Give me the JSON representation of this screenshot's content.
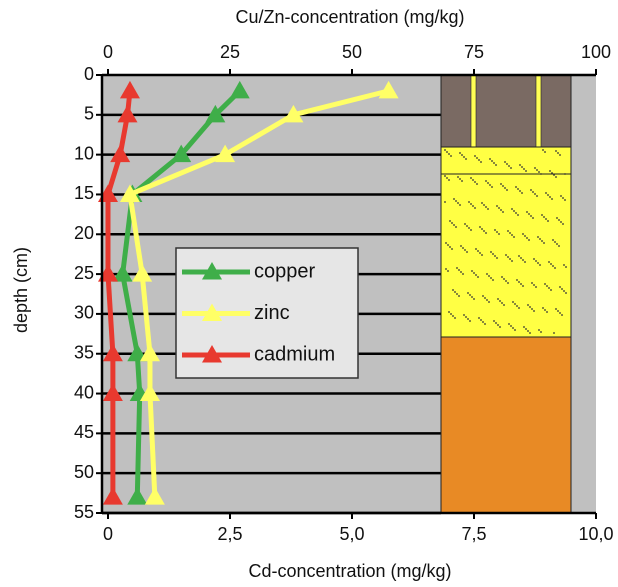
{
  "chart_data": {
    "type": "line",
    "x2_label": "Cu/Zn-concentration    (mg/kg)",
    "x_label": "Cd-concentration (mg/kg)",
    "y_label": "depth (cm)",
    "ylim": [
      0,
      55
    ],
    "yticks": [
      0,
      5,
      10,
      15,
      20,
      25,
      30,
      35,
      40,
      45,
      50,
      55
    ],
    "xlim": [
      0,
      10
    ],
    "xticks": [
      0,
      {
        "value": 2.5,
        "label": "2,5"
      },
      {
        "value": 5,
        "label": "5,0"
      },
      {
        "value": 7.5,
        "label": "7,5"
      },
      {
        "value": 10,
        "label": "10,0"
      }
    ],
    "x2lim": [
      0,
      100
    ],
    "x2ticks": [
      0,
      25,
      50,
      75,
      100
    ],
    "grid": true,
    "y": [
      2,
      5,
      10,
      15,
      25,
      35,
      40,
      53
    ],
    "series": [
      {
        "name": "copper",
        "color": "#3fae49",
        "axis": "x2",
        "values": [
          27,
          22,
          15,
          5,
          3,
          6,
          6.5,
          6
        ]
      },
      {
        "name": "zinc",
        "color": "#ffff66",
        "axis": "x2",
        "values": [
          57.5,
          38,
          24,
          4.5,
          7,
          8.6,
          8.6,
          9.6
        ]
      },
      {
        "name": "cadmium",
        "color": "#e8392f",
        "axis": "x",
        "values": [
          0.45,
          0.4,
          0.25,
          0,
          0,
          0.1,
          0.1,
          0.1
        ]
      }
    ]
  }
}
